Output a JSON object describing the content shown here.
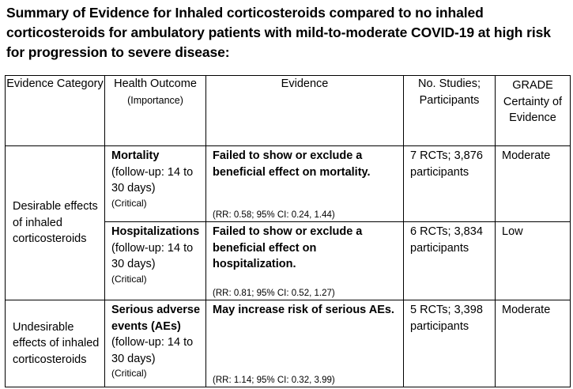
{
  "title": "Summary of Evidence for Inhaled corticosteroids compared to no inhaled corticosteroids for ambulatory patients with mild-to-moderate COVID-19 at high risk for progression to severe disease:",
  "headers": {
    "category": "Evidence Category",
    "outcome": "Health Outcome",
    "outcome_sub": "(Importance)",
    "evidence": "Evidence",
    "studies": "No. Studies; Participants",
    "grade": "GRADE Certainty of Evidence"
  },
  "groups": [
    {
      "category": "Desirable effects of inhaled corticosteroids"
    },
    {
      "category": "Undesirable effects of inhaled corticosteroids"
    }
  ],
  "rows": [
    {
      "outcome_name": "Mortality",
      "followup": "(follow-up: 14 to 30 days)",
      "importance": "(Critical)",
      "evidence": "Failed to show or exclude a beneficial effect on mortality.",
      "ci": "(RR: 0.58; 95% CI: 0.24, 1.44)",
      "studies": "7 RCTs; 3,876 participants",
      "grade": "Moderate"
    },
    {
      "outcome_name": "Hospitalizations",
      "followup": "(follow-up: 14 to 30 days)",
      "importance": "(Critical)",
      "evidence": "Failed to show or exclude a beneficial effect on hospitalization.",
      "ci": "(RR: 0.81; 95% CI: 0.52, 1.27)",
      "studies": "6 RCTs; 3,834 participants",
      "grade": "Low"
    },
    {
      "outcome_name": "Serious adverse events (AEs)",
      "followup": "(follow-up: 14 to 30 days)",
      "importance": "(Critical)",
      "evidence": "May increase risk of serious AEs.",
      "ci": "(RR: 1.14; 95% CI: 0.32, 3.99)",
      "studies": "5 RCTs; 3,398 participants",
      "grade": "Moderate"
    }
  ]
}
